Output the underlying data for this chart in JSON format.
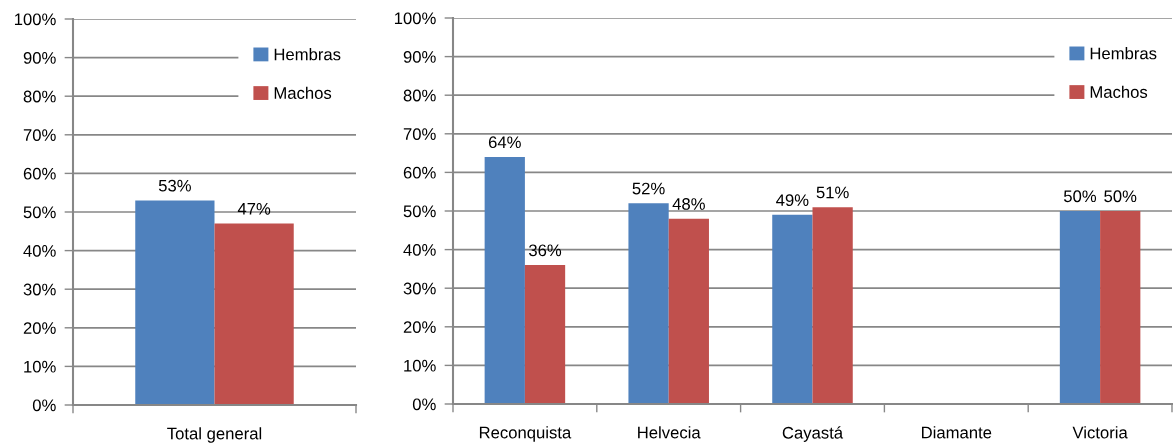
{
  "chart_data": [
    {
      "type": "bar",
      "categories": [
        "Total general"
      ],
      "series": [
        {
          "name": "Hembras",
          "color": "#4f81bd",
          "values": [
            53
          ],
          "value_labels": [
            "53%"
          ]
        },
        {
          "name": "Machos",
          "color": "#c0504d",
          "values": [
            47
          ],
          "value_labels": [
            "47%"
          ]
        }
      ],
      "ylim": [
        0,
        100
      ],
      "yticks": [
        {
          "value": 0,
          "label": "0%"
        },
        {
          "value": 10,
          "label": "10%"
        },
        {
          "value": 20,
          "label": "20%"
        },
        {
          "value": 30,
          "label": "30%"
        },
        {
          "value": 40,
          "label": "40%"
        },
        {
          "value": 50,
          "label": "50%"
        },
        {
          "value": 60,
          "label": "60%"
        },
        {
          "value": 70,
          "label": "70%"
        },
        {
          "value": 80,
          "label": "80%"
        },
        {
          "value": 90,
          "label": "90%"
        },
        {
          "value": 100,
          "label": "100%"
        }
      ],
      "grid": "y",
      "legend": "top right"
    },
    {
      "type": "bar",
      "categories": [
        "Reconquista",
        "Helvecia",
        "Cayastá",
        "Diamante",
        "Victoria"
      ],
      "series": [
        {
          "name": "Hembras",
          "color": "#4f81bd",
          "values": [
            64,
            52,
            49,
            null,
            50
          ],
          "value_labels": [
            "64%",
            "52%",
            "49%",
            null,
            "50%"
          ]
        },
        {
          "name": "Machos",
          "color": "#c0504d",
          "values": [
            36,
            48,
            51,
            null,
            50
          ],
          "value_labels": [
            "36%",
            "48%",
            "51%",
            null,
            "50%"
          ]
        }
      ],
      "ylim": [
        0,
        100
      ],
      "yticks": [
        {
          "value": 0,
          "label": "0%"
        },
        {
          "value": 10,
          "label": "10%"
        },
        {
          "value": 20,
          "label": "20%"
        },
        {
          "value": 30,
          "label": "30%"
        },
        {
          "value": 40,
          "label": "40%"
        },
        {
          "value": 50,
          "label": "50%"
        },
        {
          "value": 60,
          "label": "60%"
        },
        {
          "value": 70,
          "label": "70%"
        },
        {
          "value": 80,
          "label": "80%"
        },
        {
          "value": 90,
          "label": "90%"
        },
        {
          "value": 100,
          "label": "100%"
        }
      ],
      "grid": "y",
      "legend": "top right"
    }
  ]
}
